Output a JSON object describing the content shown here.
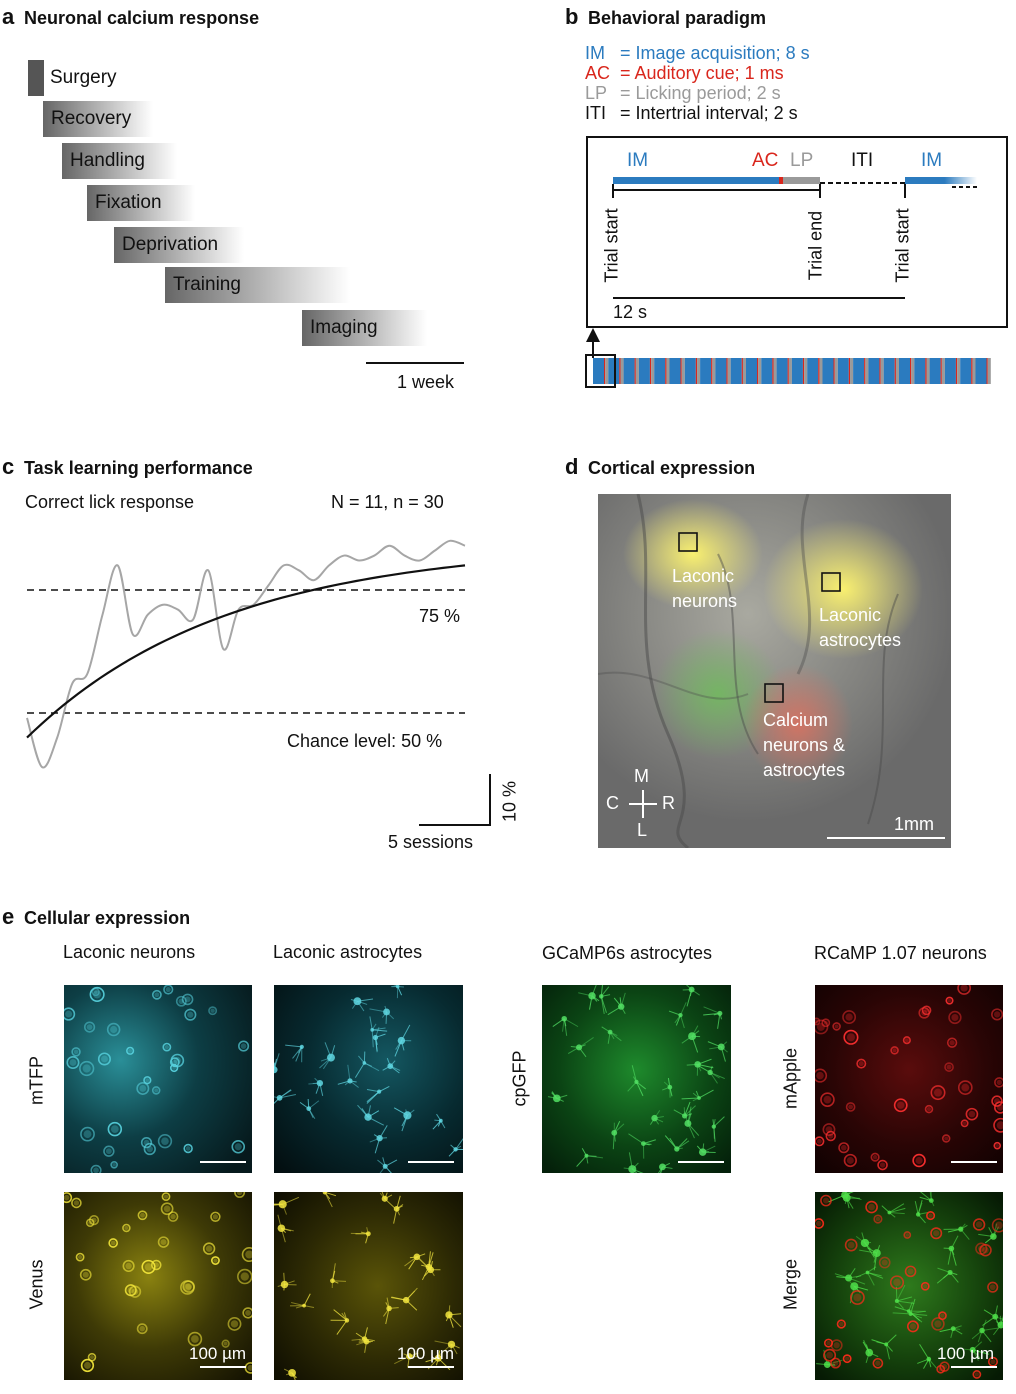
{
  "panel_a": {
    "letter": "a",
    "title": "Neuronal calcium response",
    "stages": [
      "Surgery",
      "Recovery",
      "Handling",
      "Fixation",
      "Deprivation",
      "Training",
      "Imaging"
    ],
    "scale_label": "1 week"
  },
  "panel_b": {
    "letter": "b",
    "title": "Behavioral paradigm",
    "legend": [
      {
        "abbr": "IM",
        "text": "= Image acquisition; 8 s",
        "color": "#2b7bbf"
      },
      {
        "abbr": "AC",
        "text": "= Auditory cue; 1 ms",
        "color": "#d9261c"
      },
      {
        "abbr": "LP",
        "text": "= Licking period; 2 s",
        "color": "#9a9a9a"
      },
      {
        "abbr": "ITI",
        "text": "= Intertrial interval; 2 s",
        "color": "#111111"
      }
    ],
    "box_labels": {
      "im1": "IM",
      "ac": "AC",
      "lp": "LP",
      "iti": "ITI",
      "im2": "IM"
    },
    "trial_start_1": "Trial start",
    "trial_end": "Trial end",
    "trial_start_2": "Trial start",
    "duration": "12 s"
  },
  "panel_c": {
    "letter": "c",
    "title": "Task learning performance",
    "subtitle": "Correct lick response",
    "n_label": "N = 11, n = 30",
    "line_75": "75 %",
    "line_50": "Chance level: 50 %",
    "scale_y": "10 %",
    "scale_x": "5 sessions"
  },
  "chart_data": {
    "type": "line",
    "title": "Task learning performance",
    "ylabel": "Correct lick response",
    "reference_lines": [
      {
        "label": "75 %",
        "y": 75
      },
      {
        "label": "Chance level: 50 %",
        "y": 50
      }
    ],
    "series": [
      {
        "values_kind": "raw",
        "x": [
          1,
          2,
          3,
          4,
          5,
          6,
          7,
          8,
          9,
          10,
          11,
          12,
          13,
          14,
          15,
          16,
          17,
          18,
          19,
          20,
          21,
          22,
          23,
          24,
          25,
          26,
          27,
          28,
          29,
          30
        ],
        "values": [
          49,
          39,
          45,
          56,
          58,
          70,
          80,
          66,
          70,
          72,
          71,
          69,
          79,
          63,
          71,
          72,
          76,
          80,
          79,
          77,
          80,
          82,
          81,
          82,
          84,
          82,
          81,
          83,
          85,
          84
        ]
      },
      {
        "values_kind": "fit",
        "x": [
          1,
          30
        ],
        "values": [
          45,
          80
        ]
      }
    ]
  },
  "panel_d": {
    "letter": "d",
    "title": "Cortical expression",
    "roi1": "Laconic\nneurons",
    "roi2": "Laconic\nastrocytes",
    "roi3": "Calcium\nneurons &\nastrocytes",
    "compass": {
      "m": "M",
      "l": "L",
      "c": "C",
      "r": "R"
    },
    "scale": "1mm"
  },
  "panel_e": {
    "letter": "e",
    "title": "Cellular expression",
    "col1": "Laconic neurons",
    "col2": "Laconic astrocytes",
    "col3": "GCaMP6s astrocytes",
    "col4": "RCaMP 1.07 neurons",
    "row_mtfp": "mTFP",
    "row_venus": "Venus",
    "row_cpgfp": "cpGFP",
    "row_mapple": "mApple",
    "row_merge": "Merge",
    "scale": "100 µm"
  },
  "colors": {
    "im_blue": "#2b7bbf",
    "ac_red": "#d9261c",
    "lp_gray": "#9a9a9a"
  }
}
